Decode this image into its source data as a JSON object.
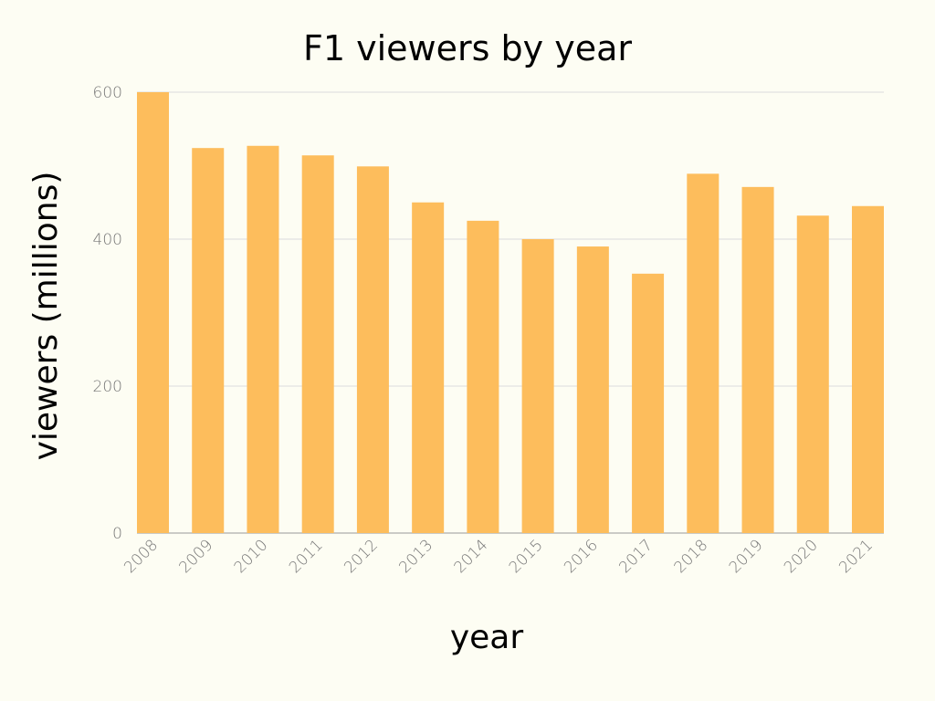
{
  "chart_data": {
    "type": "bar",
    "title": "F1 viewers by year",
    "xlabel": "year",
    "ylabel": "viewers (millions)",
    "ylim": [
      0,
      600
    ],
    "yticks": [
      0,
      200,
      400,
      600
    ],
    "grid": true,
    "categories": [
      "2008",
      "2009",
      "2010",
      "2011",
      "2012",
      "2013",
      "2014",
      "2015",
      "2016",
      "2017",
      "2018",
      "2019",
      "2020",
      "2021"
    ],
    "values": [
      600,
      524,
      527,
      514,
      499,
      450,
      425,
      400,
      390,
      353,
      489,
      471,
      432,
      445
    ],
    "colors": {
      "bar": "#fdbd5c",
      "grid": "#dcdcdc",
      "background": "#fdfdf3"
    }
  }
}
